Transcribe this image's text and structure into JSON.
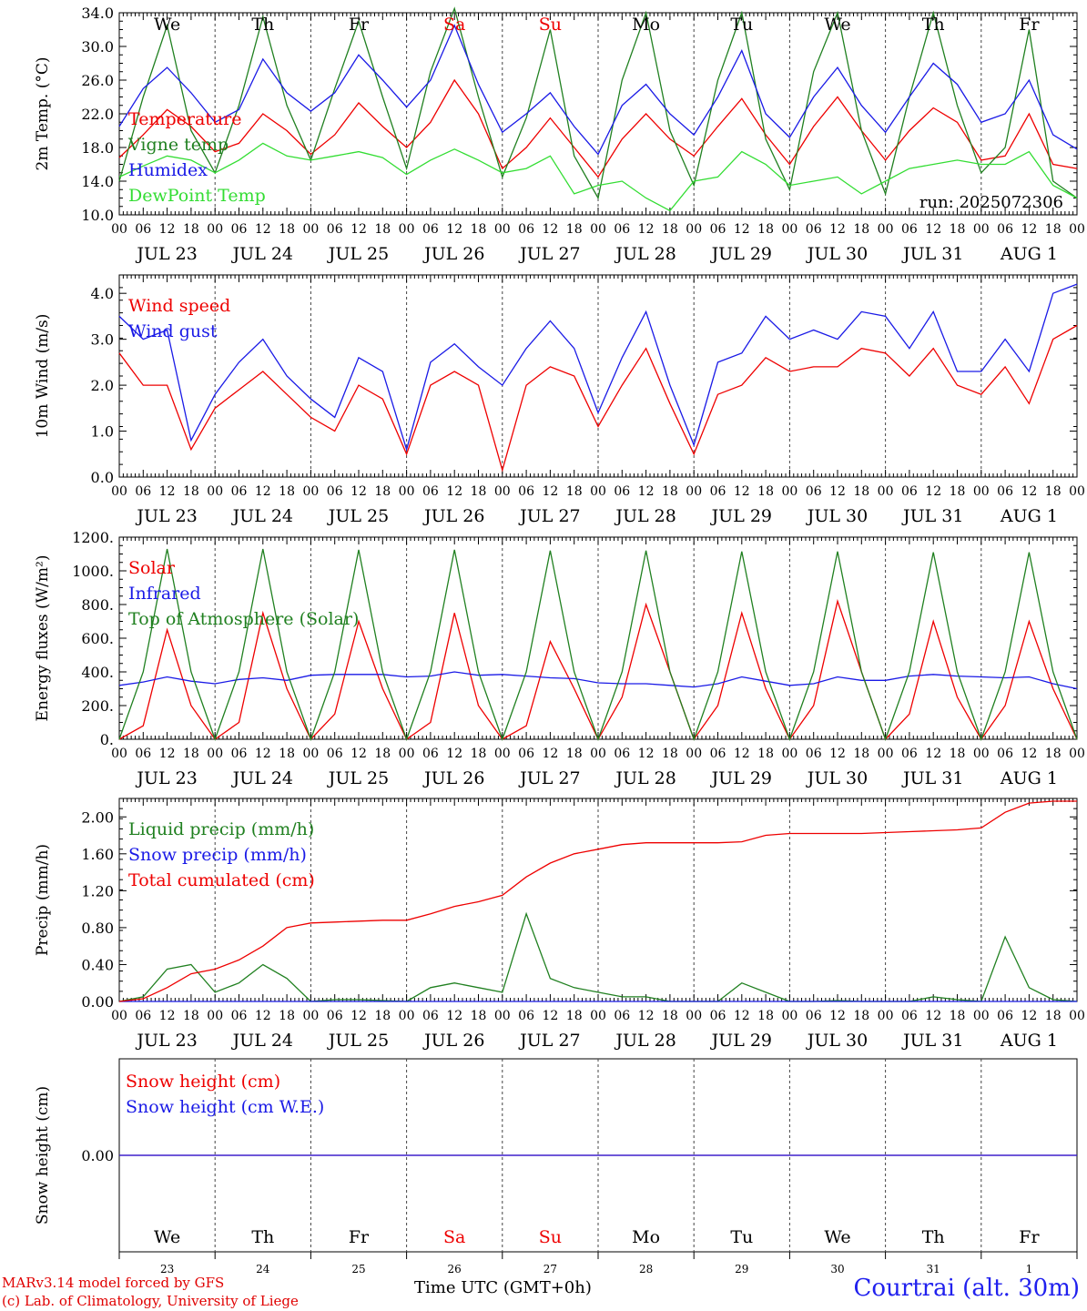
{
  "run_label": "run: 2025072306",
  "weekday_labels": [
    {
      "label": "We",
      "color": "#000000"
    },
    {
      "label": "Th",
      "color": "#000000"
    },
    {
      "label": "Fr",
      "color": "#000000"
    },
    {
      "label": "Sa",
      "color": "#ee0000"
    },
    {
      "label": "Su",
      "color": "#ee0000"
    },
    {
      "label": "Mo",
      "color": "#000000"
    },
    {
      "label": "Tu",
      "color": "#000000"
    },
    {
      "label": "We",
      "color": "#000000"
    },
    {
      "label": "Th",
      "color": "#000000"
    },
    {
      "label": "Fr",
      "color": "#000000"
    }
  ],
  "date_labels": [
    "JUL 23",
    "JUL 24",
    "JUL 25",
    "JUL 26",
    "JUL 27",
    "JUL 28",
    "JUL 29",
    "JUL 30",
    "JUL 31",
    "AUG  1"
  ],
  "day_numbers": [
    "23",
    "24",
    "25",
    "26",
    "27",
    "28",
    "29",
    "30",
    "31",
    "1"
  ],
  "hour_ticks": [
    "00",
    "06",
    "12",
    "18"
  ],
  "footer": {
    "credit_line1": "MARv3.14 model forced by GFS",
    "credit_line2": "(c) Lab. of Climatology, University of Liege",
    "time_axis": "Time UTC (GMT+0h)",
    "station": "Courtrai (alt. 30m)"
  },
  "colors": {
    "red": "#ee0000",
    "green": "#208020",
    "blue": "#1a1ae6",
    "lightgreen": "#33dd33"
  },
  "chart_data": [
    {
      "type": "line",
      "ylabel": "2m Temp. (°C)",
      "ylim": [
        10.0,
        34.0
      ],
      "yticks": [
        "10.0",
        "14.0",
        "18.0",
        "22.0",
        "26.0",
        "30.0",
        "34.0"
      ],
      "x_hours_step": 6,
      "series": [
        {
          "name": "Temperature",
          "color": "#ee0000",
          "values": [
            16.8,
            19.5,
            22.5,
            20.5,
            17.5,
            18.5,
            22.0,
            20.0,
            17.2,
            19.5,
            23.3,
            20.5,
            18.0,
            21.0,
            26.0,
            22.0,
            15.5,
            18.0,
            21.5,
            18.0,
            14.5,
            19.0,
            22.0,
            19.0,
            17.0,
            20.5,
            23.8,
            19.5,
            16.0,
            20.5,
            24.0,
            20.0,
            16.5,
            20.0,
            22.7,
            21.0,
            16.5,
            17.0,
            22.0,
            16.0,
            15.5
          ]
        },
        {
          "name": "Vigne temp",
          "color": "#208020",
          "values": [
            14.0,
            24.0,
            32.5,
            20.0,
            15.0,
            23.0,
            33.5,
            23.0,
            16.5,
            25.0,
            33.0,
            24.0,
            15.5,
            27.0,
            34.5,
            24.0,
            14.5,
            21.5,
            32.0,
            17.0,
            12.0,
            26.0,
            34.0,
            20.0,
            13.5,
            26.0,
            34.0,
            19.0,
            13.0,
            27.0,
            34.0,
            20.0,
            12.5,
            24.0,
            34.0,
            23.0,
            15.0,
            18.0,
            32.0,
            14.0,
            12.0
          ]
        },
        {
          "name": "Humidex",
          "color": "#1a1ae6",
          "values": [
            20.5,
            25.0,
            27.5,
            24.5,
            21.0,
            22.5,
            28.5,
            24.5,
            22.3,
            24.5,
            29.0,
            26.0,
            22.8,
            26.0,
            32.5,
            25.5,
            19.8,
            22.0,
            24.5,
            20.5,
            17.2,
            23.0,
            25.5,
            22.0,
            19.5,
            24.0,
            29.5,
            22.0,
            19.2,
            24.0,
            27.5,
            23.0,
            19.8,
            24.0,
            28.0,
            25.5,
            21.0,
            22.0,
            26.0,
            19.5,
            17.8
          ]
        },
        {
          "name": "DewPoint Temp",
          "color": "#33dd33",
          "values": [
            14.5,
            15.8,
            17.0,
            16.5,
            15.0,
            16.5,
            18.5,
            17.0,
            16.5,
            17.0,
            17.5,
            16.8,
            14.8,
            16.5,
            17.8,
            16.5,
            15.0,
            15.5,
            17.0,
            12.5,
            13.5,
            14.0,
            12.0,
            10.5,
            14.0,
            14.5,
            17.5,
            16.0,
            13.5,
            14.0,
            14.5,
            12.5,
            14.0,
            15.5,
            16.0,
            16.5,
            16.0,
            16.0,
            17.5,
            13.5,
            12.0
          ]
        }
      ]
    },
    {
      "type": "line",
      "ylabel": "10m Wind (m/s)",
      "ylim": [
        0.0,
        4.4
      ],
      "yticks": [
        "0.0",
        "1.0",
        "2.0",
        "3.0",
        "4.0"
      ],
      "x_hours_step": 6,
      "series": [
        {
          "name": "Wind speed",
          "color": "#ee0000",
          "values": [
            2.7,
            2.0,
            2.0,
            0.6,
            1.5,
            1.9,
            2.3,
            1.8,
            1.3,
            1.0,
            2.0,
            1.7,
            0.5,
            2.0,
            2.3,
            2.0,
            0.15,
            2.0,
            2.4,
            2.2,
            1.1,
            2.0,
            2.8,
            1.6,
            0.5,
            1.8,
            2.0,
            2.6,
            2.3,
            2.4,
            2.4,
            2.8,
            2.7,
            2.2,
            2.8,
            2.0,
            1.8,
            2.4,
            1.6,
            3.0,
            3.3
          ]
        },
        {
          "name": "Wind gust",
          "color": "#1a1ae6",
          "values": [
            3.5,
            3.0,
            3.2,
            0.8,
            1.8,
            2.5,
            3.0,
            2.2,
            1.7,
            1.3,
            2.6,
            2.3,
            0.6,
            2.5,
            2.9,
            2.4,
            2.0,
            2.8,
            3.4,
            2.8,
            1.4,
            2.6,
            3.6,
            2.0,
            0.7,
            2.5,
            2.7,
            3.5,
            3.0,
            3.2,
            3.0,
            3.6,
            3.5,
            2.8,
            3.6,
            2.3,
            2.3,
            3.0,
            2.3,
            4.0,
            4.2
          ]
        }
      ]
    },
    {
      "type": "line",
      "ylabel": "Energy fluxes (W/m²)",
      "ylim": [
        0,
        1200
      ],
      "yticks": [
        "0.",
        "200.",
        "400.",
        "600.",
        "800.",
        "1000.",
        "1200."
      ],
      "x_hours_step": 6,
      "series": [
        {
          "name": "Solar",
          "color": "#ee0000",
          "values": [
            0,
            80,
            650,
            200,
            0,
            100,
            750,
            300,
            0,
            150,
            700,
            300,
            0,
            100,
            750,
            200,
            0,
            80,
            580,
            300,
            0,
            250,
            800,
            400,
            0,
            200,
            750,
            300,
            0,
            200,
            820,
            400,
            0,
            150,
            700,
            250,
            0,
            200,
            700,
            300,
            0
          ]
        },
        {
          "name": "Infrared",
          "color": "#1a1ae6",
          "values": [
            320,
            340,
            370,
            345,
            330,
            355,
            365,
            350,
            380,
            385,
            385,
            385,
            370,
            375,
            400,
            380,
            385,
            375,
            365,
            360,
            335,
            330,
            330,
            320,
            310,
            330,
            370,
            345,
            320,
            330,
            370,
            350,
            350,
            375,
            385,
            375,
            370,
            365,
            370,
            330,
            300
          ]
        },
        {
          "name": "Top of Atmosphere (Solar)",
          "color": "#208020",
          "values": [
            0,
            400,
            1130,
            400,
            0,
            400,
            1130,
            400,
            0,
            400,
            1125,
            400,
            0,
            400,
            1125,
            400,
            0,
            400,
            1120,
            400,
            0,
            400,
            1120,
            400,
            0,
            400,
            1115,
            400,
            0,
            400,
            1115,
            400,
            0,
            400,
            1110,
            400,
            0,
            400,
            1110,
            400,
            0
          ]
        }
      ]
    },
    {
      "type": "line",
      "ylabel": "Precip (mm/h)",
      "ylim": [
        0.0,
        2.2
      ],
      "yticks": [
        "0.00",
        "0.40",
        "0.80",
        "1.20",
        "1.60",
        "2.00"
      ],
      "x_hours_step": 6,
      "series": [
        {
          "name": "Liquid precip (mm/h)",
          "color": "#208020",
          "values": [
            0,
            0.05,
            0.35,
            0.4,
            0.1,
            0.2,
            0.4,
            0.25,
            0,
            0.02,
            0.02,
            0.01,
            0,
            0.15,
            0.2,
            0.15,
            0.1,
            0.95,
            0.25,
            0.15,
            0.1,
            0.05,
            0.05,
            0,
            0,
            0,
            0.2,
            0.1,
            0,
            0,
            0.01,
            0,
            0,
            0,
            0.05,
            0.02,
            0,
            0.7,
            0.15,
            0.02,
            0
          ]
        },
        {
          "name": "Snow precip (mm/h)",
          "color": "#1a1ae6",
          "values": [
            0,
            0,
            0,
            0,
            0,
            0,
            0,
            0,
            0,
            0,
            0,
            0,
            0,
            0,
            0,
            0,
            0,
            0,
            0,
            0,
            0,
            0,
            0,
            0,
            0,
            0,
            0,
            0,
            0,
            0,
            0,
            0,
            0,
            0,
            0,
            0,
            0,
            0,
            0,
            0,
            0
          ]
        },
        {
          "name": "Total cumulated (cm)",
          "color": "#ee0000",
          "values": [
            0,
            0.03,
            0.15,
            0.3,
            0.35,
            0.45,
            0.6,
            0.8,
            0.85,
            0.86,
            0.87,
            0.88,
            0.88,
            0.95,
            1.03,
            1.08,
            1.15,
            1.35,
            1.5,
            1.6,
            1.65,
            1.7,
            1.72,
            1.72,
            1.72,
            1.72,
            1.73,
            1.8,
            1.82,
            1.82,
            1.82,
            1.82,
            1.83,
            1.84,
            1.85,
            1.86,
            1.88,
            2.05,
            2.15,
            2.17,
            2.17
          ]
        }
      ]
    },
    {
      "type": "line",
      "ylabel": "Snow height (cm)",
      "ylim": [
        -1,
        1
      ],
      "yticks": [
        "0.00"
      ],
      "x_hours_step": 6,
      "series": [
        {
          "name": "Snow height (cm)",
          "color": "#ee0000",
          "values": [
            0,
            0,
            0,
            0,
            0,
            0,
            0,
            0,
            0,
            0,
            0,
            0,
            0,
            0,
            0,
            0,
            0,
            0,
            0,
            0,
            0,
            0,
            0,
            0,
            0,
            0,
            0,
            0,
            0,
            0,
            0,
            0,
            0,
            0,
            0,
            0,
            0,
            0,
            0,
            0,
            0
          ]
        },
        {
          "name": "Snow height (cm W.E.)",
          "color": "#1a1ae6",
          "values": [
            0,
            0,
            0,
            0,
            0,
            0,
            0,
            0,
            0,
            0,
            0,
            0,
            0,
            0,
            0,
            0,
            0,
            0,
            0,
            0,
            0,
            0,
            0,
            0,
            0,
            0,
            0,
            0,
            0,
            0,
            0,
            0,
            0,
            0,
            0,
            0,
            0,
            0,
            0,
            0,
            0
          ]
        }
      ]
    }
  ]
}
